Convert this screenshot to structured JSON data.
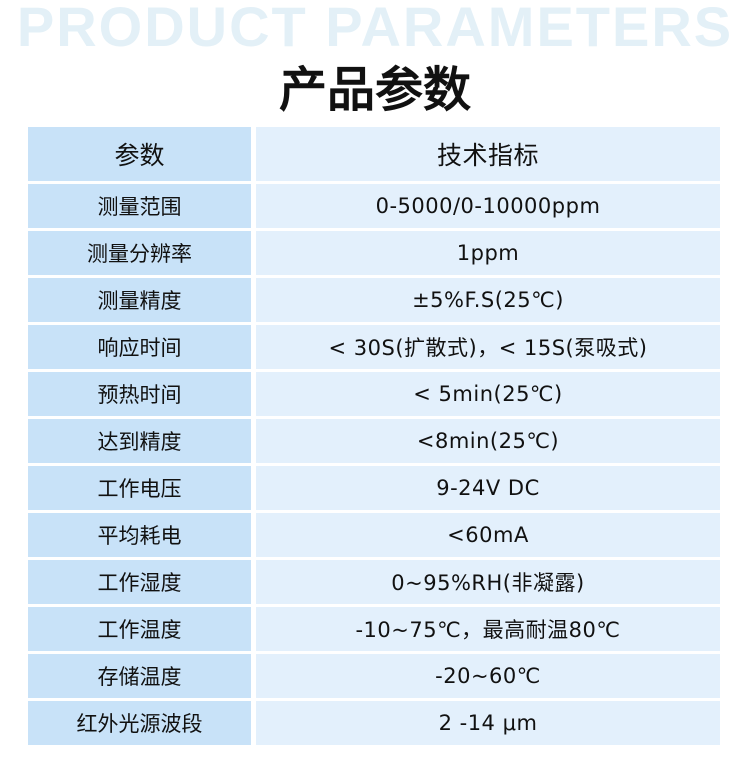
{
  "watermark": "PRODUCT PARAMETERS",
  "title": "产品参数",
  "table": {
    "headers": [
      "参数",
      "技术指标"
    ],
    "rows": [
      [
        "测量范围",
        "0-5000/0-10000ppm"
      ],
      [
        "测量分辨率",
        "1ppm"
      ],
      [
        "测量精度",
        "±5%F.S(25℃)"
      ],
      [
        "响应时间",
        "< 30S(扩散式)，< 15S(泵吸式)"
      ],
      [
        "预热时间",
        "< 5min(25℃)"
      ],
      [
        "达到精度",
        "<8min(25℃)"
      ],
      [
        "工作电压",
        "9-24V DC"
      ],
      [
        "平均耗电",
        "<60mA"
      ],
      [
        "工作湿度",
        "0~95%RH(非凝露)"
      ],
      [
        "工作温度",
        "-10~75℃，最高耐温80℃"
      ],
      [
        "存储温度",
        "-20~60℃"
      ],
      [
        "红外光源波段",
        "2 -14 μm"
      ]
    ]
  },
  "colors": {
    "param_col": "#c8e2f8",
    "value_col": "#e3f0fc",
    "watermark": "#e3f0f7"
  }
}
